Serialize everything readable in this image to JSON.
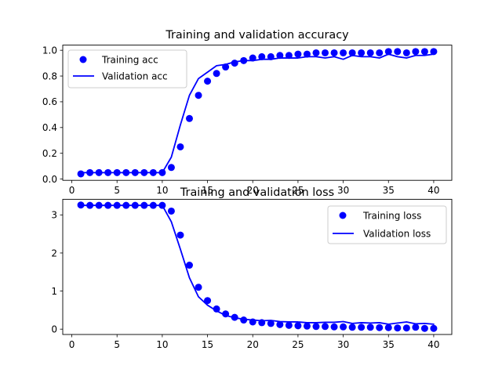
{
  "chart_data": [
    {
      "type": "line",
      "title": "Training and validation accuracy",
      "xlabel": "",
      "ylabel": "",
      "xlim": [
        -1,
        42
      ],
      "ylim": [
        -0.01,
        1.04
      ],
      "xticks": [
        0,
        5,
        10,
        15,
        20,
        25,
        30,
        35,
        40
      ],
      "yticks": [
        0.0,
        0.2,
        0.4,
        0.6,
        0.8,
        1.0
      ],
      "yticklabels": [
        "0.0",
        "0.2",
        "0.4",
        "0.6",
        "0.8",
        "1.0"
      ],
      "grid": false,
      "legend": "top-left",
      "x": [
        1,
        2,
        3,
        4,
        5,
        6,
        7,
        8,
        9,
        10,
        11,
        12,
        13,
        14,
        15,
        16,
        17,
        18,
        19,
        20,
        21,
        22,
        23,
        24,
        25,
        26,
        27,
        28,
        29,
        30,
        31,
        32,
        33,
        34,
        35,
        36,
        37,
        38,
        39,
        40
      ],
      "series": [
        {
          "name": "Training acc",
          "style": "markers",
          "color": "#0000ff",
          "values": [
            0.04,
            0.05,
            0.05,
            0.05,
            0.05,
            0.05,
            0.05,
            0.05,
            0.05,
            0.05,
            0.09,
            0.25,
            0.47,
            0.65,
            0.76,
            0.82,
            0.87,
            0.9,
            0.92,
            0.94,
            0.95,
            0.95,
            0.96,
            0.96,
            0.97,
            0.97,
            0.98,
            0.98,
            0.98,
            0.98,
            0.98,
            0.98,
            0.98,
            0.98,
            0.99,
            0.99,
            0.98,
            0.99,
            0.99,
            0.99
          ]
        },
        {
          "name": "Validation acc",
          "style": "line",
          "color": "#0000ff",
          "values": [
            0.05,
            0.05,
            0.05,
            0.05,
            0.05,
            0.05,
            0.05,
            0.05,
            0.05,
            0.05,
            0.17,
            0.42,
            0.65,
            0.78,
            0.83,
            0.88,
            0.89,
            0.91,
            0.92,
            0.92,
            0.93,
            0.93,
            0.94,
            0.94,
            0.94,
            0.95,
            0.95,
            0.94,
            0.95,
            0.93,
            0.96,
            0.95,
            0.95,
            0.94,
            0.97,
            0.95,
            0.94,
            0.96,
            0.96,
            0.97
          ]
        }
      ]
    },
    {
      "type": "line",
      "title": "Training and validation loss",
      "xlabel": "",
      "ylabel": "",
      "xlim": [
        -1,
        42
      ],
      "ylim": [
        -0.14,
        3.41
      ],
      "xticks": [
        0,
        5,
        10,
        15,
        20,
        25,
        30,
        35,
        40
      ],
      "yticks": [
        0,
        1,
        2,
        3
      ],
      "yticklabels": [
        "0",
        "1",
        "2",
        "3"
      ],
      "grid": false,
      "legend": "top-right",
      "x": [
        1,
        2,
        3,
        4,
        5,
        6,
        7,
        8,
        9,
        10,
        11,
        12,
        13,
        14,
        15,
        16,
        17,
        18,
        19,
        20,
        21,
        22,
        23,
        24,
        25,
        26,
        27,
        28,
        29,
        30,
        31,
        32,
        33,
        34,
        35,
        36,
        37,
        38,
        39,
        40
      ],
      "series": [
        {
          "name": "Training loss",
          "style": "markers",
          "color": "#0000ff",
          "values": [
            3.26,
            3.25,
            3.25,
            3.25,
            3.25,
            3.25,
            3.25,
            3.25,
            3.25,
            3.25,
            3.1,
            2.47,
            1.68,
            1.1,
            0.75,
            0.53,
            0.4,
            0.31,
            0.24,
            0.19,
            0.17,
            0.15,
            0.12,
            0.1,
            0.09,
            0.08,
            0.07,
            0.07,
            0.06,
            0.06,
            0.05,
            0.05,
            0.05,
            0.04,
            0.04,
            0.03,
            0.03,
            0.05,
            0.02,
            0.02
          ]
        },
        {
          "name": "Validation loss",
          "style": "line",
          "color": "#0000ff",
          "values": [
            3.25,
            3.25,
            3.25,
            3.25,
            3.25,
            3.25,
            3.25,
            3.25,
            3.25,
            3.25,
            2.82,
            2.1,
            1.35,
            0.85,
            0.63,
            0.48,
            0.36,
            0.3,
            0.26,
            0.24,
            0.22,
            0.23,
            0.2,
            0.19,
            0.19,
            0.17,
            0.17,
            0.18,
            0.18,
            0.2,
            0.15,
            0.17,
            0.16,
            0.17,
            0.13,
            0.16,
            0.19,
            0.14,
            0.15,
            0.13
          ]
        }
      ]
    }
  ]
}
